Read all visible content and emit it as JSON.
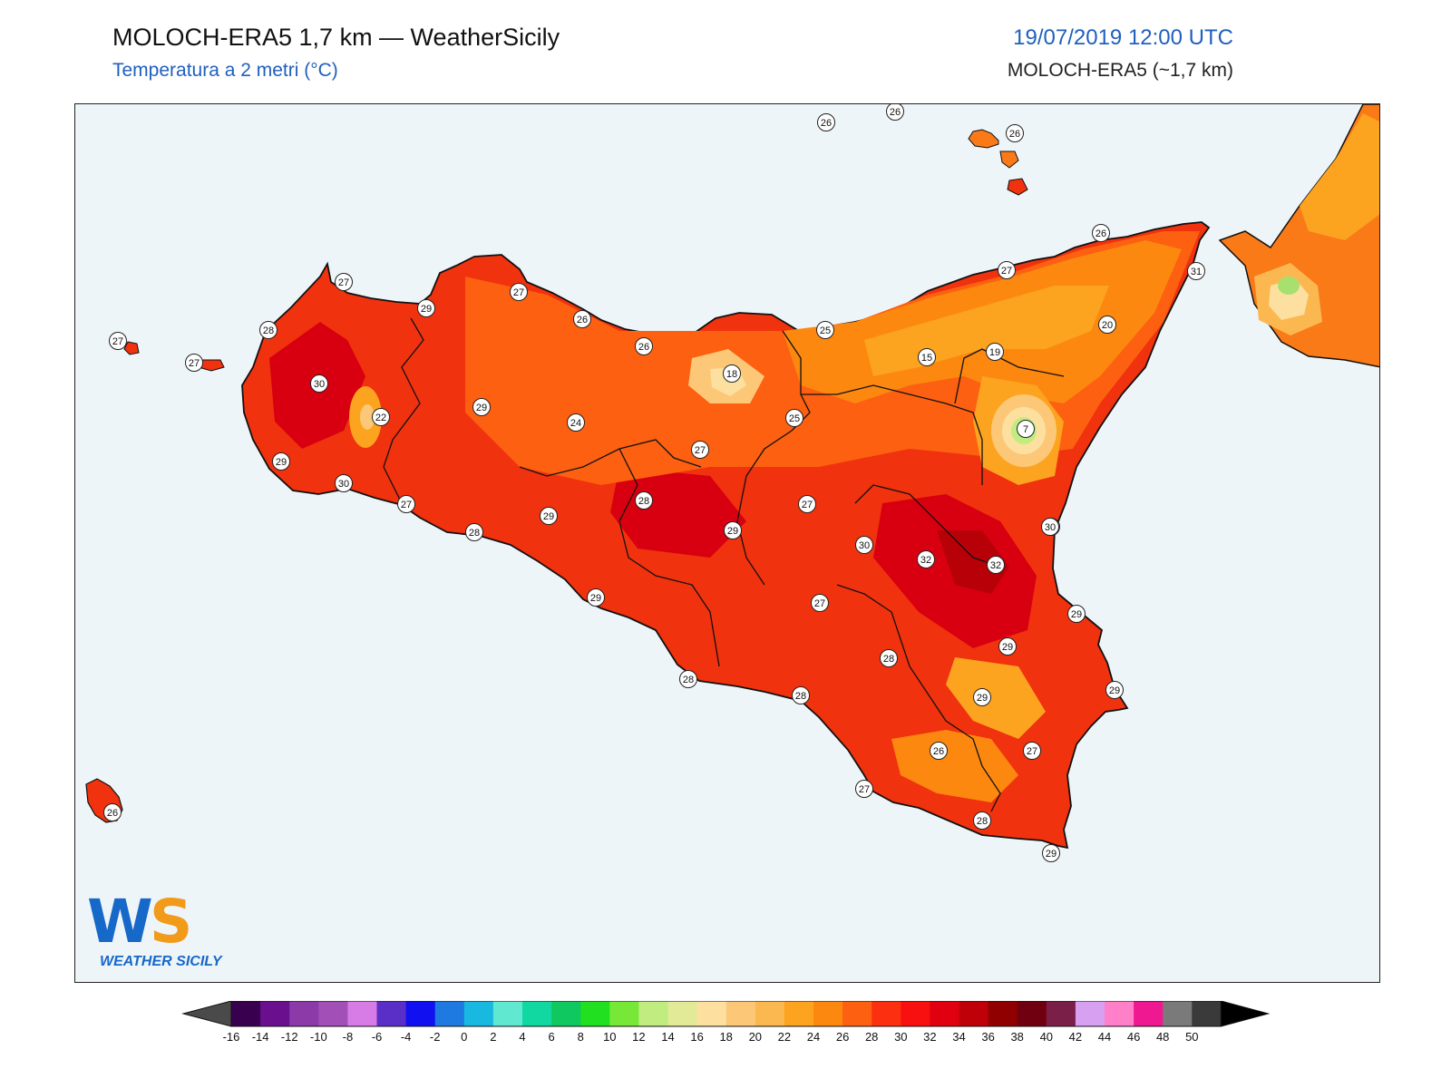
{
  "header": {
    "title": "MOLOCH-ERA5 1,7 km — WeatherSicily",
    "subtitle": "Temperatura a 2 metri (°C)",
    "datetime": "19/07/2019 12:00 UTC",
    "model_note": "MOLOCH-ERA5 (~1,7 km)"
  },
  "logo": {
    "letters_w": "W",
    "letters_s": "S",
    "caption": "WEATHER SICILY"
  },
  "colors": {
    "sea": "#eef5f9",
    "land_base": "#f0320e",
    "coast": "#111111"
  },
  "station_values": [
    26,
    26,
    26,
    26,
    27,
    27,
    27,
    28,
    30,
    29,
    27,
    26,
    26,
    25,
    31,
    30,
    22,
    29,
    18,
    15,
    19,
    20,
    24,
    27,
    25,
    7,
    27,
    29,
    30,
    27,
    28,
    29,
    28,
    29,
    27,
    30,
    32,
    32,
    30,
    29,
    29,
    29,
    27,
    28,
    29,
    28,
    28,
    29,
    26,
    27,
    27,
    28,
    29,
    26
  ],
  "colorbar": {
    "ticks": [
      "-16",
      "-14",
      "-12",
      "-10",
      "-8",
      "-6",
      "-4",
      "-2",
      "0",
      "2",
      "4",
      "6",
      "8",
      "10",
      "12",
      "14",
      "16",
      "18",
      "20",
      "22",
      "24",
      "26",
      "28",
      "30",
      "32",
      "34",
      "36",
      "38",
      "40",
      "42",
      "44",
      "46",
      "48",
      "50"
    ],
    "colors": [
      "#3a0050",
      "#6a0f8e",
      "#8b3aa8",
      "#a24fb8",
      "#d77be6",
      "#5a2fc8",
      "#1010f0",
      "#1e7ae0",
      "#18b8e0",
      "#60e8d0",
      "#10d8a0",
      "#10c860",
      "#20e020",
      "#78e838",
      "#c0ec80",
      "#e2ea98",
      "#fde0a0",
      "#fcc878",
      "#fcb850",
      "#fca420",
      "#fc8810",
      "#fc6010",
      "#fc3010",
      "#f81010",
      "#e00010",
      "#c00008",
      "#900000",
      "#700010",
      "#7a2048",
      "#d8a0f0",
      "#ff80c8",
      "#f01890",
      "#7a7a7a",
      "#3a3a3a"
    ]
  }
}
